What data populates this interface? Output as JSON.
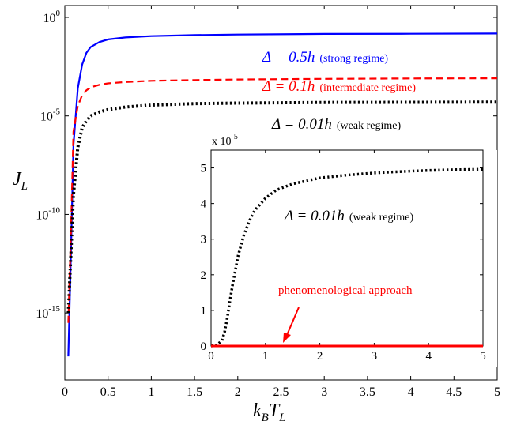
{
  "chart_data": [
    {
      "type": "line",
      "xlabel": "k_B T_L",
      "ylabel": "J_L",
      "xscale": "linear",
      "yscale": "log",
      "xlim": [
        0,
        5
      ],
      "ylim_log10": [
        -18.4,
        0.6
      ],
      "x_ticks": [
        "0",
        "0.5",
        "1",
        "1.5",
        "2",
        "2.5",
        "3",
        "3.5",
        "4",
        "4.5",
        "5"
      ],
      "y_ticks": [
        {
          "base": "10",
          "exp": "0",
          "log10": 0
        },
        {
          "base": "10",
          "exp": "-5",
          "log10": -5
        },
        {
          "base": "10",
          "exp": "-10",
          "log10": -10
        },
        {
          "base": "10",
          "exp": "-15",
          "log10": -15
        }
      ],
      "grid": false,
      "series": [
        {
          "name": "Δ = 0.5h (strong regime)",
          "label_math": "Δ = 0.5h",
          "label_note": "(strong regime)",
          "color": "#0000ff",
          "style": "solid",
          "x": [
            0.04,
            0.07,
            0.1,
            0.15,
            0.2,
            0.25,
            0.3,
            0.4,
            0.5,
            0.7,
            1.0,
            1.5,
            2.0,
            3.0,
            4.0,
            5.0
          ],
          "log10y": [
            -17.2,
            -12.0,
            -6.5,
            -3.6,
            -2.4,
            -1.8,
            -1.5,
            -1.25,
            -1.12,
            -1.02,
            -0.95,
            -0.9,
            -0.87,
            -0.84,
            -0.83,
            -0.82
          ]
        },
        {
          "name": "Δ = 0.1h (intermediate regime)",
          "label_math": "Δ = 0.1h",
          "label_note": "(intermediate regime)",
          "color": "#ff0000",
          "style": "dashed",
          "x": [
            0.04,
            0.07,
            0.1,
            0.15,
            0.2,
            0.25,
            0.3,
            0.4,
            0.5,
            0.7,
            1.0,
            1.5,
            2.0,
            3.0,
            4.0,
            5.0
          ],
          "log10y": [
            -15.5,
            -11.0,
            -5.8,
            -4.5,
            -3.95,
            -3.7,
            -3.55,
            -3.42,
            -3.35,
            -3.28,
            -3.22,
            -3.18,
            -3.15,
            -3.12,
            -3.1,
            -3.09
          ]
        },
        {
          "name": "Δ = 0.01h (weak regime)",
          "label_math": "Δ = 0.01h",
          "label_note": "(weak regime)",
          "color": "#000000",
          "style": "dotted",
          "x": [
            0.04,
            0.07,
            0.1,
            0.15,
            0.2,
            0.25,
            0.3,
            0.4,
            0.5,
            0.7,
            1.0,
            1.5,
            2.0,
            3.0,
            4.0,
            5.0
          ],
          "log10y": [
            -15.0,
            -12.0,
            -9.0,
            -6.6,
            -5.6,
            -5.25,
            -5.0,
            -4.8,
            -4.68,
            -4.55,
            -4.45,
            -4.38,
            -4.35,
            -4.32,
            -4.31,
            -4.3
          ]
        }
      ]
    },
    {
      "type": "line",
      "inset": true,
      "scale_label": "x 10",
      "scale_exp": "-5",
      "xscale": "linear",
      "yscale": "linear",
      "xlim": [
        0,
        5
      ],
      "ylim": [
        0,
        5.5
      ],
      "x_ticks": [
        "0",
        "1",
        "2",
        "3",
        "4",
        "5"
      ],
      "y_ticks": [
        "0",
        "1",
        "2",
        "3",
        "4",
        "5"
      ],
      "grid": false,
      "legend_math": "Δ = 0.01h",
      "legend_note": "(weak regime)",
      "annotation": "phenomenological approach",
      "series": [
        {
          "name": "Δ = 0.01h (weak regime)",
          "color": "#000000",
          "style": "dotted",
          "x": [
            0.0,
            0.1,
            0.2,
            0.25,
            0.3,
            0.35,
            0.4,
            0.5,
            0.6,
            0.7,
            0.8,
            1.0,
            1.2,
            1.5,
            2.0,
            2.5,
            3.0,
            3.5,
            4.0,
            4.5,
            5.0
          ],
          "y": [
            0.0,
            0.02,
            0.15,
            0.4,
            0.8,
            1.3,
            1.75,
            2.55,
            3.1,
            3.5,
            3.8,
            4.15,
            4.38,
            4.55,
            4.72,
            4.8,
            4.86,
            4.9,
            4.93,
            4.95,
            4.96
          ]
        },
        {
          "name": "phenomenological approach",
          "color": "#ff0000",
          "style": "solid",
          "x": [
            0,
            5
          ],
          "y": [
            0,
            0
          ]
        }
      ]
    }
  ]
}
